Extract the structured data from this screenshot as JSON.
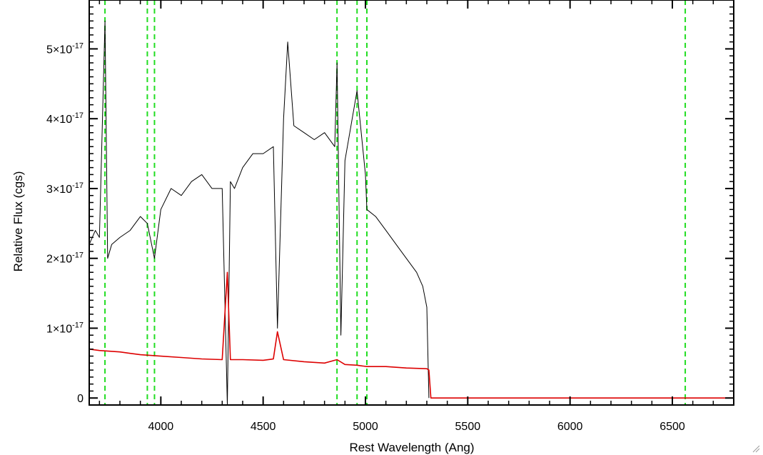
{
  "chart_data": {
    "type": "line",
    "title": "",
    "xlabel": "Rest Wavelength (Ang)",
    "ylabel": "Relative Flux (cgs)",
    "xlim": [
      3650,
      6800
    ],
    "ylim": [
      -1e-18,
      5.7e-17
    ],
    "x_ticks": [
      4000,
      4500,
      5000,
      5500,
      6000,
      6500
    ],
    "y_ticks": [
      0,
      1e-17,
      2e-17,
      3e-17,
      4e-17,
      5e-17
    ],
    "y_tick_labels": [
      {
        "mantissa": "0",
        "exponent": ""
      },
      {
        "mantissa": "1×10",
        "exponent": "-17"
      },
      {
        "mantissa": "2×10",
        "exponent": "-17"
      },
      {
        "mantissa": "3×10",
        "exponent": "-17"
      },
      {
        "mantissa": "4×10",
        "exponent": "-17"
      },
      {
        "mantissa": "5×10",
        "exponent": "-17"
      }
    ],
    "grid": false,
    "reference_lines_x": [
      3727,
      3934,
      3969,
      4861,
      4959,
      5007,
      6563
    ],
    "series": [
      {
        "color": "#000000",
        "x": [
          3650,
          3680,
          3700,
          3727,
          3740,
          3760,
          3800,
          3850,
          3900,
          3934,
          3969,
          4000,
          4050,
          4100,
          4150,
          4200,
          4250,
          4300,
          4325,
          4340,
          4360,
          4400,
          4450,
          4500,
          4550,
          4570,
          4600,
          4620,
          4650,
          4700,
          4750,
          4800,
          4850,
          4861,
          4880,
          4900,
          4959,
          5000,
          5007,
          5050,
          5100,
          5150,
          5200,
          5250,
          5280,
          5300,
          5310
        ],
        "y": [
          2.2e-17,
          2.4e-17,
          2.3e-17,
          5.4e-17,
          2e-17,
          2.2e-17,
          2.3e-17,
          2.4e-17,
          2.6e-17,
          2.5e-17,
          2e-17,
          2.7e-17,
          3e-17,
          2.9e-17,
          3.1e-17,
          3.2e-17,
          3e-17,
          3e-17,
          -1e-18,
          3.1e-17,
          3e-17,
          3.3e-17,
          3.5e-17,
          3.5e-17,
          3.6e-17,
          1e-17,
          4e-17,
          5.1e-17,
          3.9e-17,
          3.8e-17,
          3.7e-17,
          3.8e-17,
          3.6e-17,
          4.8e-17,
          9e-18,
          3.4e-17,
          4.4e-17,
          3.2e-17,
          2.7e-17,
          2.6e-17,
          2.4e-17,
          2.2e-17,
          2e-17,
          1.8e-17,
          1.6e-17,
          1.3e-17,
          0
        ]
      },
      {
        "color": "#dd0000",
        "x": [
          3650,
          3700,
          3800,
          3850,
          3900,
          4000,
          4100,
          4200,
          4300,
          4325,
          4340,
          4400,
          4500,
          4550,
          4570,
          4600,
          4700,
          4800,
          4861,
          4900,
          4959,
          5007,
          5100,
          5200,
          5300,
          5310,
          5320,
          6800
        ],
        "y": [
          7e-18,
          6.8e-18,
          6.6e-18,
          6.4e-18,
          6.2e-18,
          6e-18,
          5.8e-18,
          5.6e-18,
          5.5e-18,
          1.8e-17,
          5.5e-18,
          5.5e-18,
          5.4e-18,
          5.6e-18,
          9.5e-18,
          5.5e-18,
          5.2e-18,
          5e-18,
          5.5e-18,
          4.8e-18,
          4.7e-18,
          4.5e-18,
          4.5e-18,
          4.3e-18,
          4.2e-18,
          4e-18,
          0,
          0
        ]
      }
    ]
  },
  "colors": {
    "reference_line": "#22dd22",
    "axis": "#000000"
  }
}
